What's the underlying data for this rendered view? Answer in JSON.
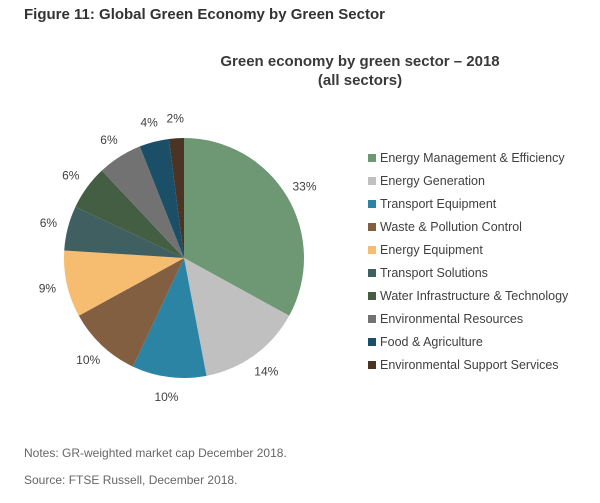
{
  "figure_title": "Figure 11: Global Green Economy by Green Sector",
  "notes": "Notes: GR-weighted market cap December 2018.",
  "source": "Source: FTSE Russell, December 2018.",
  "chart_data": {
    "type": "pie",
    "title": "Green economy by green sector – 2018",
    "subtitle": "(all sectors)",
    "legend_position": "right",
    "start_angle": "12 o'clock, clockwise",
    "categories": [
      "Energy Management & Efficiency",
      "Energy Generation",
      "Transport Equipment",
      "Waste & Pollution Control",
      "Energy Equipment",
      "Transport Solutions",
      "Water Infrastructure & Technology",
      "Environmental Resources",
      "Food & Agriculture",
      "Environmental Support Services"
    ],
    "values": [
      33,
      14,
      10,
      10,
      9,
      6,
      6,
      6,
      4,
      2
    ],
    "labels": [
      "33%",
      "14%",
      "10%",
      "10%",
      "9%",
      "6%",
      "6%",
      "6%",
      "4%",
      "2%"
    ],
    "colors": [
      "#6e9873",
      "#c0c0c0",
      "#2b84a3",
      "#835f41",
      "#f6bd71",
      "#3f5f61",
      "#445e44",
      "#727272",
      "#1a4f67",
      "#4a3424"
    ]
  }
}
